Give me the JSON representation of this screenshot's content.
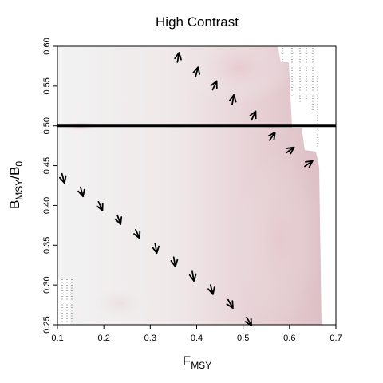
{
  "chart_data": {
    "type": "heatmap",
    "title": "High Contrast",
    "xlabel": {
      "main": "F",
      "sub": "MSY"
    },
    "ylabel": {
      "main": "B",
      "sub1": "MSY",
      "sep": "/B",
      "sub2": "0"
    },
    "xlim": [
      0.1,
      0.7
    ],
    "ylim": [
      0.25,
      0.6
    ],
    "xticks": [
      "0.1",
      "0.2",
      "0.3",
      "0.4",
      "0.5",
      "0.6",
      "0.7"
    ],
    "yticks": [
      "0.25",
      "0.30",
      "0.35",
      "0.40",
      "0.45",
      "0.50",
      "0.55",
      "0.60"
    ],
    "reference_line_y": 0.5,
    "grid": false,
    "legend": "none",
    "colors": {
      "low": "#f2f2f2",
      "high": "#d8b7bd",
      "line": "#000000",
      "arrow": "#000000"
    },
    "arrows": [
      {
        "x": 0.112,
        "y": 0.435,
        "angle": -75
      },
      {
        "x": 0.152,
        "y": 0.418,
        "angle": -75
      },
      {
        "x": 0.192,
        "y": 0.4,
        "angle": -65
      },
      {
        "x": 0.232,
        "y": 0.383,
        "angle": -70
      },
      {
        "x": 0.272,
        "y": 0.365,
        "angle": -65
      },
      {
        "x": 0.312,
        "y": 0.347,
        "angle": -80
      },
      {
        "x": 0.352,
        "y": 0.33,
        "angle": -80
      },
      {
        "x": 0.392,
        "y": 0.312,
        "angle": -80
      },
      {
        "x": 0.432,
        "y": 0.295,
        "angle": -75
      },
      {
        "x": 0.472,
        "y": 0.277,
        "angle": -60
      },
      {
        "x": 0.512,
        "y": 0.255,
        "angle": -60
      },
      {
        "x": 0.36,
        "y": 0.585,
        "angle": 80
      },
      {
        "x": 0.4,
        "y": 0.567,
        "angle": 75
      },
      {
        "x": 0.438,
        "y": 0.55,
        "angle": 65
      },
      {
        "x": 0.478,
        "y": 0.532,
        "angle": 80
      },
      {
        "x": 0.522,
        "y": 0.512,
        "angle": 65
      },
      {
        "x": 0.562,
        "y": 0.486,
        "angle": 55
      },
      {
        "x": 0.6,
        "y": 0.469,
        "angle": 35
      },
      {
        "x": 0.64,
        "y": 0.452,
        "angle": 35
      }
    ]
  }
}
